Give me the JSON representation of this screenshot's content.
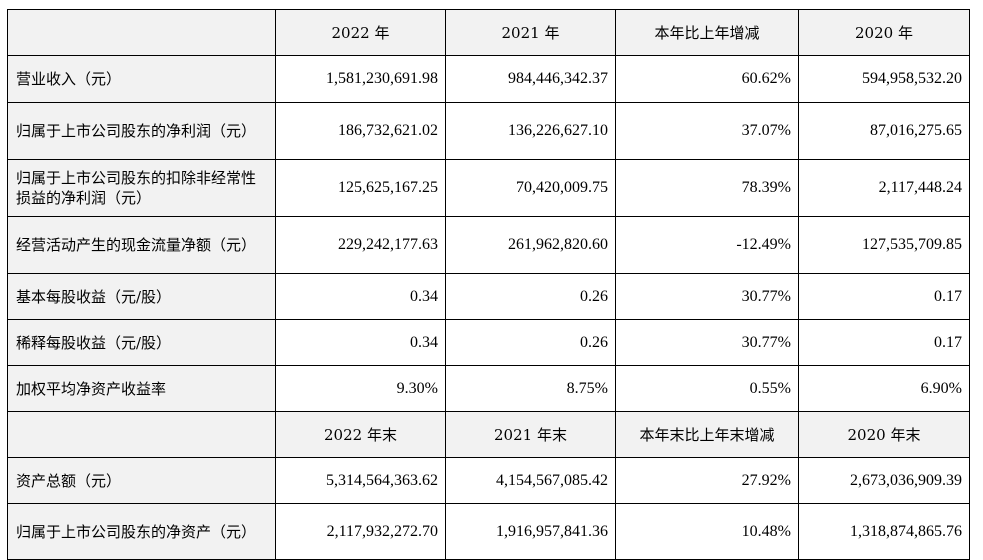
{
  "header1": [
    "",
    "2022 年",
    "2021 年",
    "本年比上年增减",
    "2020 年"
  ],
  "rows1": [
    {
      "label": "营业收入（元）",
      "values": [
        "1,581,230,691.98",
        "984,446,342.37",
        "60.62%",
        "594,958,532.20"
      ]
    },
    {
      "label": "归属于上市公司股东的净利润（元）",
      "values": [
        "186,732,621.02",
        "136,226,627.10",
        "37.07%",
        "87,016,275.65"
      ]
    },
    {
      "label": "归属于上市公司股东的扣除非经常性损益的净利润（元）",
      "values": [
        "125,625,167.25",
        "70,420,009.75",
        "78.39%",
        "2,117,448.24"
      ]
    },
    {
      "label": "经营活动产生的现金流量净额（元）",
      "values": [
        "229,242,177.63",
        "261,962,820.60",
        "-12.49%",
        "127,535,709.85"
      ]
    },
    {
      "label": "基本每股收益（元/股）",
      "values": [
        "0.34",
        "0.26",
        "30.77%",
        "0.17"
      ]
    },
    {
      "label": "稀释每股收益（元/股）",
      "values": [
        "0.34",
        "0.26",
        "30.77%",
        "0.17"
      ]
    },
    {
      "label": "加权平均净资产收益率",
      "values": [
        "9.30%",
        "8.75%",
        "0.55%",
        "6.90%"
      ]
    }
  ],
  "header2": [
    "",
    "2022 年末",
    "2021 年末",
    "本年末比上年末增减",
    "2020 年末"
  ],
  "rows2": [
    {
      "label": "资产总额（元）",
      "values": [
        "5,314,564,363.62",
        "4,154,567,085.42",
        "27.92%",
        "2,673,036,909.39"
      ]
    },
    {
      "label": "归属于上市公司股东的净资产（元）",
      "values": [
        "2,117,932,272.70",
        "1,916,957,841.36",
        "10.48%",
        "1,318,874,865.76"
      ]
    }
  ]
}
